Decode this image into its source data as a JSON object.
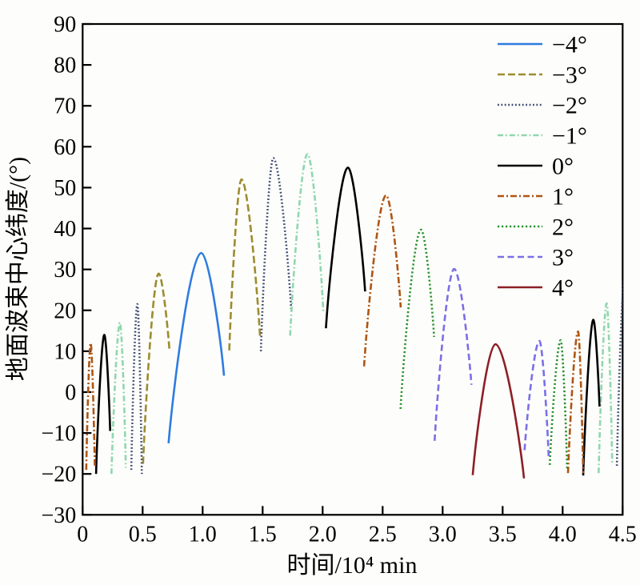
{
  "chart_data": {
    "type": "line",
    "title": "",
    "xlabel": "时间/10⁴ min",
    "ylabel": "地面波束中心纬度/(°)",
    "xlim": [
      0,
      4.5
    ],
    "ylim": [
      -30,
      90
    ],
    "grid": false,
    "legend_position": "upper right inside, no frame",
    "x_ticks": [
      0,
      0.5,
      1.0,
      1.5,
      2.0,
      2.5,
      3.0,
      3.5,
      4.0,
      4.5
    ],
    "x_tick_labels": [
      "0",
      "0.5",
      "1.0",
      "1.5",
      "2.0",
      "2.5",
      "3.0",
      "3.5",
      "4.0",
      "4.5"
    ],
    "y_ticks": [
      90,
      80,
      70,
      60,
      50,
      40,
      30,
      20,
      10,
      0,
      -10,
      -20,
      -30
    ],
    "y_tick_labels": [
      "90",
      "80",
      "70",
      "60",
      "50",
      "40",
      "30",
      "20",
      "10",
      "0",
      "−10",
      "−20",
      "−30"
    ],
    "axis_color": "#000000",
    "series_note": "each series is a set of arch segments; every arch is given as [left-end, peak, right-end] points of [time(10^4 min), latitude(deg)]",
    "series": [
      {
        "name": "−4°",
        "color": "#2e7ce0",
        "style": "solid",
        "dash": null,
        "arches": [
          [
            [
              0.716,
              -12.5
            ],
            [
              0.989,
              34.0
            ],
            [
              1.178,
              4.0
            ]
          ]
        ]
      },
      {
        "name": "−3°",
        "color": "#9c8c2f",
        "style": "dashed",
        "dash": [
          9,
          4
        ],
        "arches": [
          [
            [
              0.503,
              -17.5
            ],
            [
              0.633,
              29.0
            ],
            [
              0.723,
              10.3
            ]
          ],
          [
            [
              1.222,
              10.2
            ],
            [
              1.323,
              52.0
            ],
            [
              1.478,
              13.8
            ]
          ]
        ]
      },
      {
        "name": "−2°",
        "color": "#3b4970",
        "style": "dotted",
        "dash": [
          1.8,
          2.6
        ],
        "arches": [
          [
            [
              0.405,
              -19.0
            ],
            [
              0.456,
              21.5
            ],
            [
              0.493,
              -20.0
            ]
          ],
          [
            [
              1.485,
              10.0
            ],
            [
              1.589,
              57.2
            ],
            [
              1.738,
              20.3
            ]
          ],
          [
            [
              4.452,
              -18.0
            ],
            [
              4.52,
              30.0
            ],
            [
              4.59,
              -18.0
            ]
          ]
        ]
      },
      {
        "name": "−1°",
        "color": "#8fd7ad",
        "style": "dash-dot",
        "dash": [
          7,
          3,
          1.8,
          3
        ],
        "arches": [
          [
            [
              0.24,
              -20.0
            ],
            [
              0.311,
              17.0
            ],
            [
              0.36,
              -18.5
            ]
          ],
          [
            [
              1.729,
              13.8
            ],
            [
              1.873,
              58.2
            ],
            [
              2.006,
              19.5
            ]
          ],
          [
            [
              4.3,
              -19.8
            ],
            [
              4.367,
              21.7
            ],
            [
              4.413,
              -17.8
            ]
          ]
        ]
      },
      {
        "name": "0°",
        "color": "#000000",
        "style": "solid",
        "dash": null,
        "arches": [
          [
            [
              0.112,
              -20.0
            ],
            [
              0.181,
              14.0
            ],
            [
              0.229,
              -9.5
            ]
          ],
          [
            [
              2.027,
              15.6
            ],
            [
              2.211,
              54.9
            ],
            [
              2.354,
              24.6
            ]
          ],
          [
            [
              4.171,
              -20.4
            ],
            [
              4.256,
              17.7
            ],
            [
              4.307,
              -3.5
            ]
          ]
        ]
      },
      {
        "name": "1°",
        "color": "#ae5513",
        "style": "dash-dot",
        "dash": [
          8,
          3,
          2,
          3
        ],
        "arches": [
          [
            [
              0.03,
              -19.0
            ],
            [
              0.067,
              12.0
            ],
            [
              0.101,
              -18.0
            ]
          ],
          [
            [
              2.345,
              6.3
            ],
            [
              2.529,
              48.1
            ],
            [
              2.651,
              20.7
            ]
          ],
          [
            [
              4.045,
              -19.8
            ],
            [
              4.129,
              14.8
            ],
            [
              4.171,
              -19.8
            ]
          ]
        ]
      },
      {
        "name": "2°",
        "color": "#2c9231",
        "style": "dotted",
        "dash": [
          2.2,
          2.8
        ],
        "arches": [
          [
            [
              2.649,
              -4.1
            ],
            [
              2.82,
              39.7
            ],
            [
              2.929,
              13.5
            ]
          ],
          [
            [
              3.893,
              -17.8
            ],
            [
              3.983,
              12.7
            ],
            [
              4.038,
              -19.1
            ]
          ]
        ]
      },
      {
        "name": "3°",
        "color": "#7b6fe6",
        "style": "dashed",
        "dash": [
          8,
          4.5
        ],
        "arches": [
          [
            [
              2.933,
              -11.9
            ],
            [
              3.096,
              30.1
            ],
            [
              3.24,
              1.8
            ]
          ],
          [
            [
              3.683,
              -14.2
            ],
            [
              3.807,
              12.5
            ],
            [
              3.885,
              -16.5
            ]
          ]
        ]
      },
      {
        "name": "4°",
        "color": "#8c1f26",
        "style": "solid",
        "dash": null,
        "arches": [
          [
            [
              3.251,
              -20.3
            ],
            [
              3.44,
              11.7
            ],
            [
              3.678,
              -21.1
            ]
          ]
        ]
      }
    ]
  }
}
